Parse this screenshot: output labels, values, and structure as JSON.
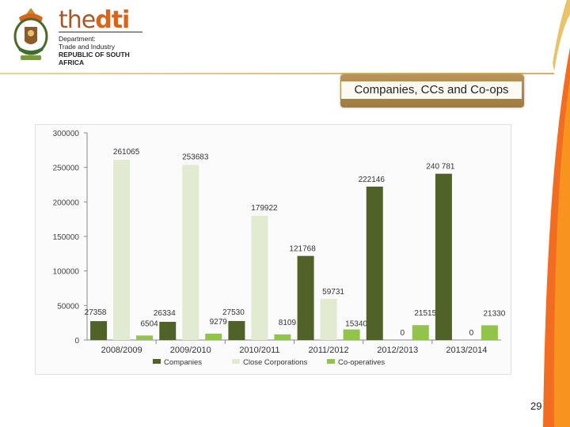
{
  "logo": {
    "the": "the",
    "dti": "dti",
    "dept_line1": "Department:",
    "dept_line2": "Trade and Industry",
    "dept_line3": "REPUBLIC OF SOUTH AFRICA"
  },
  "slide": {
    "title": "Companies, CCs and Co-ops",
    "page_number": "29"
  },
  "colors": {
    "companies": "#4f6228",
    "close_corporations": "#e3ead2",
    "cooperatives": "#92c34a",
    "accent_orange": "#f26d21"
  },
  "chart_data": {
    "type": "bar",
    "categories": [
      "2008/2009",
      "2009/2010",
      "2010/2011",
      "2011/2012",
      "2012/2013",
      "2013/2014"
    ],
    "series": [
      {
        "name": "Companies",
        "values": [
          27358,
          26334,
          27530,
          121768,
          222146,
          240781
        ],
        "labels": [
          "27358",
          "26334",
          "27530",
          "121768",
          "222146",
          "240 781"
        ]
      },
      {
        "name": "Close Corporations",
        "values": [
          261065,
          253683,
          179922,
          59731,
          0,
          0
        ],
        "labels": [
          "261065",
          "253683",
          "179922",
          "59731",
          "0",
          "0"
        ]
      },
      {
        "name": "Co-operatives",
        "values": [
          6504,
          9279,
          8109,
          15340,
          21515,
          21330
        ],
        "labels": [
          "6504",
          "9279",
          "8109",
          "15340",
          "21515",
          "21330"
        ]
      }
    ],
    "ylim": [
      0,
      300000
    ],
    "yticks": [
      0,
      50000,
      100000,
      150000,
      200000,
      250000,
      300000
    ],
    "ytick_labels": [
      "0",
      "50000",
      "100000",
      "150000",
      "200000",
      "250000",
      "300000"
    ],
    "legend_position": "bottom",
    "grid": false
  }
}
